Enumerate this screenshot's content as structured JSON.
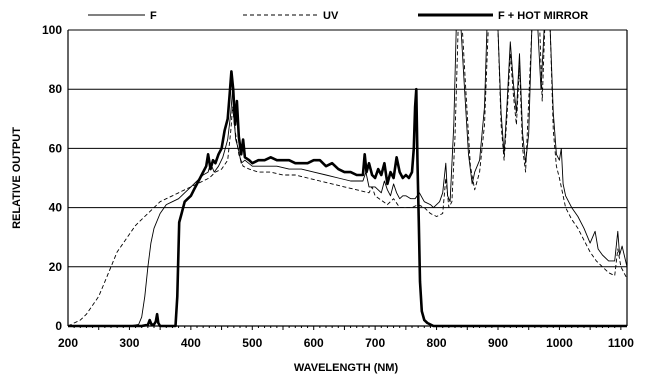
{
  "chart_data": {
    "type": "line",
    "xlabel": "WAVELENGTH (NM)",
    "ylabel": "RELATIVE OUTPUT",
    "xlim": [
      200,
      1110
    ],
    "ylim": [
      0,
      100
    ],
    "x_ticks": [
      200,
      300,
      400,
      500,
      600,
      700,
      800,
      900,
      1000,
      1100
    ],
    "y_ticks": [
      0,
      20,
      40,
      60,
      80,
      100
    ],
    "grid": "horizontal",
    "legend_position": "top",
    "series": [
      {
        "name": "F",
        "style": "thin-solid",
        "points": [
          [
            200,
            0
          ],
          [
            300,
            0
          ],
          [
            315,
            0.5
          ],
          [
            320,
            3
          ],
          [
            325,
            10
          ],
          [
            330,
            20
          ],
          [
            335,
            28
          ],
          [
            340,
            33
          ],
          [
            350,
            38
          ],
          [
            360,
            41
          ],
          [
            370,
            42
          ],
          [
            380,
            43
          ],
          [
            390,
            45
          ],
          [
            400,
            47
          ],
          [
            410,
            49
          ],
          [
            420,
            51
          ],
          [
            428,
            52
          ],
          [
            432,
            55
          ],
          [
            438,
            52
          ],
          [
            445,
            54
          ],
          [
            452,
            57
          ],
          [
            456,
            60
          ],
          [
            460,
            63
          ],
          [
            465,
            72
          ],
          [
            468,
            80
          ],
          [
            470,
            71
          ],
          [
            473,
            63
          ],
          [
            477,
            60
          ],
          [
            482,
            55
          ],
          [
            488,
            56
          ],
          [
            494,
            55
          ],
          [
            500,
            54
          ],
          [
            520,
            54
          ],
          [
            540,
            54
          ],
          [
            560,
            53
          ],
          [
            580,
            53
          ],
          [
            600,
            52
          ],
          [
            620,
            51
          ],
          [
            640,
            50
          ],
          [
            660,
            49
          ],
          [
            680,
            49
          ],
          [
            685,
            52
          ],
          [
            690,
            47
          ],
          [
            700,
            47
          ],
          [
            710,
            45
          ],
          [
            715,
            49
          ],
          [
            720,
            46
          ],
          [
            725,
            44
          ],
          [
            730,
            48
          ],
          [
            735,
            45
          ],
          [
            740,
            43
          ],
          [
            745,
            44
          ],
          [
            750,
            44
          ],
          [
            758,
            43
          ],
          [
            765,
            43
          ],
          [
            772,
            45
          ],
          [
            780,
            42
          ],
          [
            790,
            41
          ],
          [
            795,
            40
          ],
          [
            805,
            42
          ],
          [
            810,
            45
          ],
          [
            815,
            55
          ],
          [
            818,
            44
          ],
          [
            822,
            42
          ],
          [
            828,
            68
          ],
          [
            832,
            100
          ],
          [
            840,
            100
          ],
          [
            845,
            82
          ],
          [
            852,
            58
          ],
          [
            858,
            48
          ],
          [
            862,
            52
          ],
          [
            870,
            56
          ],
          [
            878,
            74
          ],
          [
            882,
            100
          ],
          [
            890,
            100
          ],
          [
            895,
            100
          ],
          [
            900,
            100
          ],
          [
            905,
            72
          ],
          [
            910,
            58
          ],
          [
            915,
            76
          ],
          [
            920,
            96
          ],
          [
            925,
            82
          ],
          [
            930,
            72
          ],
          [
            935,
            92
          ],
          [
            940,
            65
          ],
          [
            945,
            55
          ],
          [
            950,
            65
          ],
          [
            955,
            100
          ],
          [
            965,
            100
          ],
          [
            970,
            80
          ],
          [
            975,
            100
          ],
          [
            985,
            100
          ],
          [
            990,
            72
          ],
          [
            995,
            58
          ],
          [
            1000,
            56
          ],
          [
            1003,
            60
          ],
          [
            1006,
            48
          ],
          [
            1010,
            44
          ],
          [
            1020,
            40
          ],
          [
            1030,
            37
          ],
          [
            1040,
            33
          ],
          [
            1050,
            28
          ],
          [
            1058,
            32
          ],
          [
            1063,
            26
          ],
          [
            1070,
            24
          ],
          [
            1080,
            22
          ],
          [
            1090,
            22
          ],
          [
            1095,
            32
          ],
          [
            1098,
            24
          ],
          [
            1102,
            27
          ],
          [
            1110,
            20
          ]
        ]
      },
      {
        "name": "UV",
        "style": "dashed",
        "points": [
          [
            200,
            0
          ],
          [
            210,
            1
          ],
          [
            220,
            2
          ],
          [
            230,
            4
          ],
          [
            240,
            7
          ],
          [
            250,
            10
          ],
          [
            260,
            15
          ],
          [
            270,
            20
          ],
          [
            280,
            25
          ],
          [
            290,
            28
          ],
          [
            300,
            31
          ],
          [
            310,
            34
          ],
          [
            320,
            36
          ],
          [
            330,
            38
          ],
          [
            340,
            40
          ],
          [
            350,
            42
          ],
          [
            360,
            43
          ],
          [
            370,
            44
          ],
          [
            380,
            45
          ],
          [
            390,
            46
          ],
          [
            400,
            47
          ],
          [
            410,
            48
          ],
          [
            420,
            49
          ],
          [
            430,
            50
          ],
          [
            440,
            52
          ],
          [
            450,
            53
          ],
          [
            460,
            56
          ],
          [
            465,
            66
          ],
          [
            468,
            74
          ],
          [
            472,
            66
          ],
          [
            478,
            58
          ],
          [
            485,
            54
          ],
          [
            495,
            53
          ],
          [
            510,
            52
          ],
          [
            530,
            52
          ],
          [
            550,
            51
          ],
          [
            570,
            51
          ],
          [
            590,
            50
          ],
          [
            610,
            49
          ],
          [
            630,
            48
          ],
          [
            650,
            47
          ],
          [
            670,
            46
          ],
          [
            690,
            45
          ],
          [
            695,
            47
          ],
          [
            700,
            44
          ],
          [
            720,
            41
          ],
          [
            730,
            43
          ],
          [
            740,
            40
          ],
          [
            760,
            40
          ],
          [
            770,
            41
          ],
          [
            780,
            40
          ],
          [
            790,
            38
          ],
          [
            800,
            37
          ],
          [
            810,
            38
          ],
          [
            815,
            50
          ],
          [
            820,
            40
          ],
          [
            825,
            42
          ],
          [
            830,
            64
          ],
          [
            835,
            100
          ],
          [
            842,
            100
          ],
          [
            848,
            78
          ],
          [
            855,
            54
          ],
          [
            862,
            46
          ],
          [
            870,
            52
          ],
          [
            878,
            68
          ],
          [
            884,
            100
          ],
          [
            900,
            100
          ],
          [
            905,
            68
          ],
          [
            910,
            56
          ],
          [
            915,
            72
          ],
          [
            920,
            92
          ],
          [
            925,
            78
          ],
          [
            930,
            68
          ],
          [
            935,
            88
          ],
          [
            940,
            60
          ],
          [
            945,
            52
          ],
          [
            955,
            100
          ],
          [
            968,
            100
          ],
          [
            972,
            76
          ],
          [
            976,
            100
          ],
          [
            985,
            100
          ],
          [
            990,
            66
          ],
          [
            995,
            54
          ],
          [
            1000,
            50
          ],
          [
            1010,
            40
          ],
          [
            1020,
            36
          ],
          [
            1030,
            33
          ],
          [
            1040,
            29
          ],
          [
            1050,
            25
          ],
          [
            1060,
            22
          ],
          [
            1070,
            20
          ],
          [
            1080,
            18
          ],
          [
            1090,
            17
          ],
          [
            1095,
            26
          ],
          [
            1100,
            20
          ],
          [
            1110,
            16
          ]
        ]
      },
      {
        "name": "F + HOT MIRROR",
        "style": "thick-solid",
        "points": [
          [
            200,
            0
          ],
          [
            320,
            0
          ],
          [
            330,
            0.4
          ],
          [
            333,
            2
          ],
          [
            336,
            0.5
          ],
          [
            340,
            0.5
          ],
          [
            343,
            1.5
          ],
          [
            345,
            4
          ],
          [
            347,
            1
          ],
          [
            350,
            0
          ],
          [
            370,
            0
          ],
          [
            375,
            0
          ],
          [
            378,
            10
          ],
          [
            381,
            35
          ],
          [
            385,
            38
          ],
          [
            390,
            42
          ],
          [
            395,
            43
          ],
          [
            400,
            44
          ],
          [
            405,
            46
          ],
          [
            410,
            48
          ],
          [
            415,
            50
          ],
          [
            420,
            52
          ],
          [
            425,
            54
          ],
          [
            428,
            58
          ],
          [
            432,
            53
          ],
          [
            436,
            56
          ],
          [
            440,
            55
          ],
          [
            445,
            58
          ],
          [
            450,
            60
          ],
          [
            455,
            66
          ],
          [
            460,
            70
          ],
          [
            463,
            78
          ],
          [
            466,
            86
          ],
          [
            469,
            80
          ],
          [
            472,
            68
          ],
          [
            475,
            76
          ],
          [
            478,
            64
          ],
          [
            482,
            58
          ],
          [
            485,
            63
          ],
          [
            488,
            57
          ],
          [
            495,
            56
          ],
          [
            500,
            55
          ],
          [
            510,
            56
          ],
          [
            520,
            56
          ],
          [
            530,
            57
          ],
          [
            540,
            56
          ],
          [
            550,
            56
          ],
          [
            560,
            56
          ],
          [
            570,
            55
          ],
          [
            580,
            55
          ],
          [
            590,
            55
          ],
          [
            600,
            56
          ],
          [
            610,
            56
          ],
          [
            620,
            54
          ],
          [
            630,
            55
          ],
          [
            640,
            53
          ],
          [
            650,
            52
          ],
          [
            660,
            52
          ],
          [
            670,
            51
          ],
          [
            680,
            51
          ],
          [
            683,
            58
          ],
          [
            686,
            52
          ],
          [
            690,
            55
          ],
          [
            695,
            51
          ],
          [
            700,
            50
          ],
          [
            705,
            53
          ],
          [
            710,
            51
          ],
          [
            715,
            55
          ],
          [
            720,
            48
          ],
          [
            725,
            52
          ],
          [
            730,
            50
          ],
          [
            735,
            57
          ],
          [
            740,
            52
          ],
          [
            745,
            50
          ],
          [
            750,
            51
          ],
          [
            755,
            50
          ],
          [
            760,
            52
          ],
          [
            763,
            60
          ],
          [
            765,
            74
          ],
          [
            767,
            80
          ],
          [
            769,
            55
          ],
          [
            771,
            35
          ],
          [
            773,
            15
          ],
          [
            776,
            5
          ],
          [
            780,
            2
          ],
          [
            785,
            1
          ],
          [
            795,
            0
          ],
          [
            1110,
            0
          ]
        ]
      }
    ]
  }
}
